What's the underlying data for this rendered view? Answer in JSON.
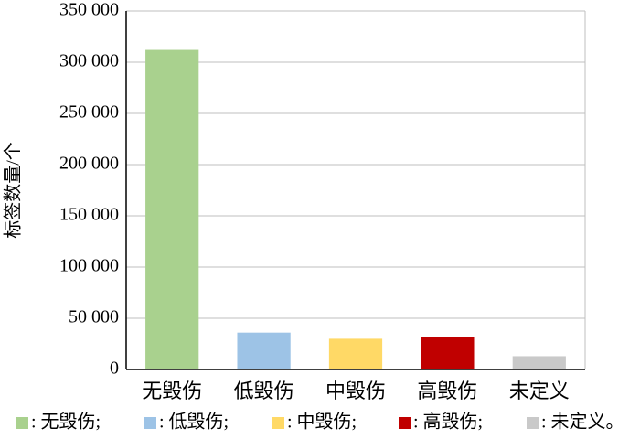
{
  "chart_data": {
    "type": "bar",
    "y_label": "标签数量/个",
    "categories": [
      "无毁伤",
      "低毁伤",
      "中毁伤",
      "高毁伤",
      "未定义"
    ],
    "values": [
      312000,
      36000,
      30000,
      32000,
      13000
    ],
    "colors": [
      "#a9d18e",
      "#9dc3e6",
      "#ffd966",
      "#c00000",
      "#c9c9c9"
    ],
    "legend": [
      ": 无毁伤;",
      ": 低毁伤;",
      ": 中毁伤;",
      ": 高毁伤;",
      ": 未定义。"
    ],
    "ylim": [
      0,
      350000
    ],
    "yticks": [
      0,
      {
        "value": 50000,
        "label": "50 000"
      },
      {
        "value": 100000,
        "label": "100 000"
      },
      {
        "value": 150000,
        "label": "150 000"
      },
      {
        "value": 200000,
        "label": "200 000"
      },
      {
        "value": 250000,
        "label": "250 000"
      },
      {
        "value": 300000,
        "label": "300 000"
      },
      {
        "value": 350000,
        "label": "350 000"
      }
    ],
    "grid": true
  }
}
